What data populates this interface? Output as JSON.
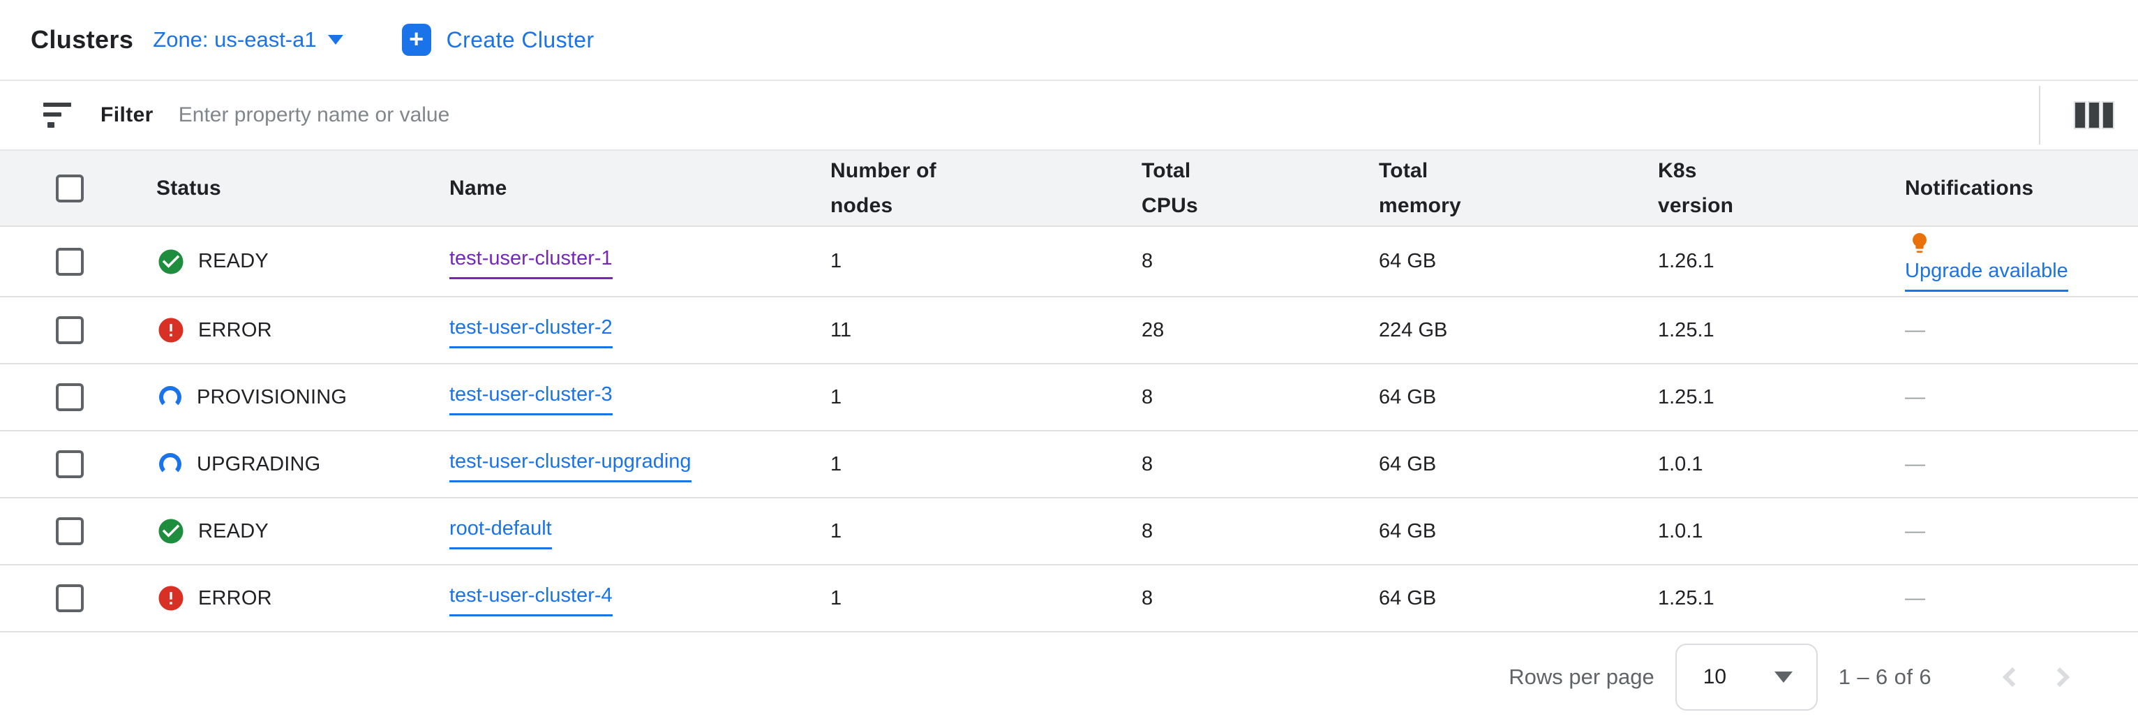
{
  "header": {
    "title": "Clusters",
    "zone_label": "Zone: us-east-a1",
    "create_label": "Create Cluster"
  },
  "filter": {
    "label": "Filter",
    "placeholder": "Enter property name or value"
  },
  "table": {
    "columns": {
      "status": "Status",
      "name": "Name",
      "nodes": "Number of nodes",
      "cpus": "Total CPUs",
      "memory": "Total memory",
      "k8s": "K8s version",
      "notifications": "Notifications"
    },
    "rows": [
      {
        "status": "READY",
        "kind": "ready",
        "name": "test-user-cluster-1",
        "visited": true,
        "nodes": "1",
        "cpus": "8",
        "memory": "64 GB",
        "k8s": "1.26.1",
        "notification": "Upgrade available",
        "upgrade": true
      },
      {
        "status": "ERROR",
        "kind": "error",
        "name": "test-user-cluster-2",
        "visited": false,
        "nodes": "11",
        "cpus": "28",
        "memory": "224 GB",
        "k8s": "1.25.1",
        "notification": "—",
        "upgrade": false
      },
      {
        "status": "PROVISIONING",
        "kind": "progress",
        "name": "test-user-cluster-3",
        "visited": false,
        "nodes": "1",
        "cpus": "8",
        "memory": "64 GB",
        "k8s": "1.25.1",
        "notification": "—",
        "upgrade": false
      },
      {
        "status": "UPGRADING",
        "kind": "progress",
        "name": "test-user-cluster-upgrading",
        "visited": false,
        "nodes": "1",
        "cpus": "8",
        "memory": "64 GB",
        "k8s": "1.0.1",
        "notification": "—",
        "upgrade": false
      },
      {
        "status": "READY",
        "kind": "ready",
        "name": "root-default",
        "visited": false,
        "nodes": "1",
        "cpus": "8",
        "memory": "64 GB",
        "k8s": "1.0.1",
        "notification": "—",
        "upgrade": false
      },
      {
        "status": "ERROR",
        "kind": "error",
        "name": "test-user-cluster-4",
        "visited": false,
        "nodes": "1",
        "cpus": "8",
        "memory": "64 GB",
        "k8s": "1.25.1",
        "notification": "—",
        "upgrade": false
      }
    ]
  },
  "footer": {
    "rows_per_page_label": "Rows per page",
    "rows_per_page_value": "10",
    "range_label": "1 – 6 of 6"
  },
  "colors": {
    "accent_blue": "#1a73e8",
    "ready_green": "#1e8e3e",
    "error_red": "#d93025",
    "bulb_orange": "#e8710a",
    "visited_purple": "#7627bb",
    "header_bg": "#f1f3f4"
  }
}
